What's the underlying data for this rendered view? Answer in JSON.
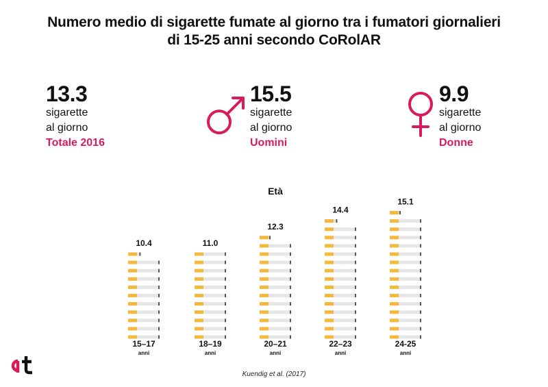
{
  "title_line1": "Numero medio di sigarette fumate al giorno tra i fumatori giornalieri",
  "title_line2": "di 15-25 anni secondo CoRolAR",
  "stats": [
    {
      "value": "13.3",
      "line1": "sigarette",
      "line2": "al giorno",
      "label": "Totale 2016"
    },
    {
      "value": "15.5",
      "line1": "sigarette",
      "line2": "al giorno",
      "label": "Uomini"
    },
    {
      "value": "9.9",
      "line1": "sigarette",
      "line2": "al giorno",
      "label": "Donne"
    }
  ],
  "icons": {
    "male": "male-symbol-icon",
    "female": "female-symbol-icon",
    "cigarette": "cigarette-icon"
  },
  "colors": {
    "accent": "#d81b5a",
    "filter": "#f3b93c",
    "paper": "#e6e6e6",
    "ash": "#555555"
  },
  "source": "Kuendig et al. (2017)",
  "chart_data": {
    "type": "bar",
    "title": "Età",
    "categories": [
      "15–17",
      "18–19",
      "20–21",
      "22–23",
      "24-25"
    ],
    "unit_label": "anni",
    "values": [
      10.4,
      11.0,
      12.3,
      14.4,
      15.1
    ],
    "value_labels": [
      "10.4",
      "11.0",
      "12.3",
      "14.4",
      "15.1"
    ]
  }
}
